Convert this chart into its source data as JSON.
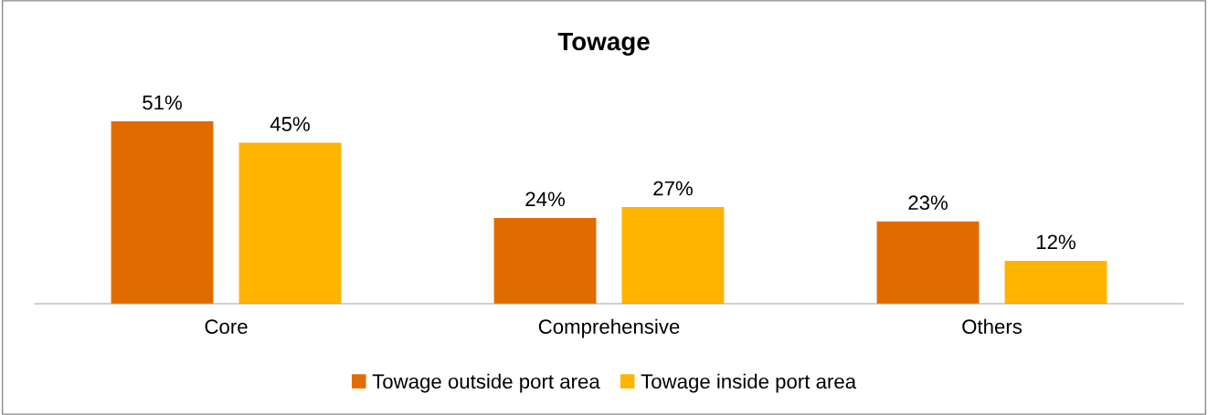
{
  "chart_data": {
    "type": "bar",
    "title": "Towage",
    "categories": [
      "Core",
      "Comprehensive",
      "Others"
    ],
    "series": [
      {
        "name": "Towage outside port area",
        "color": "#e06c00",
        "values": [
          51,
          24,
          23
        ],
        "value_labels": [
          "51%",
          "24%",
          "23%"
        ]
      },
      {
        "name": "Towage inside port area",
        "color": "#ffb400",
        "values": [
          45,
          27,
          12
        ],
        "value_labels": [
          "45%",
          "27%",
          "12%"
        ]
      }
    ],
    "legend": "bottom",
    "grid": false
  }
}
